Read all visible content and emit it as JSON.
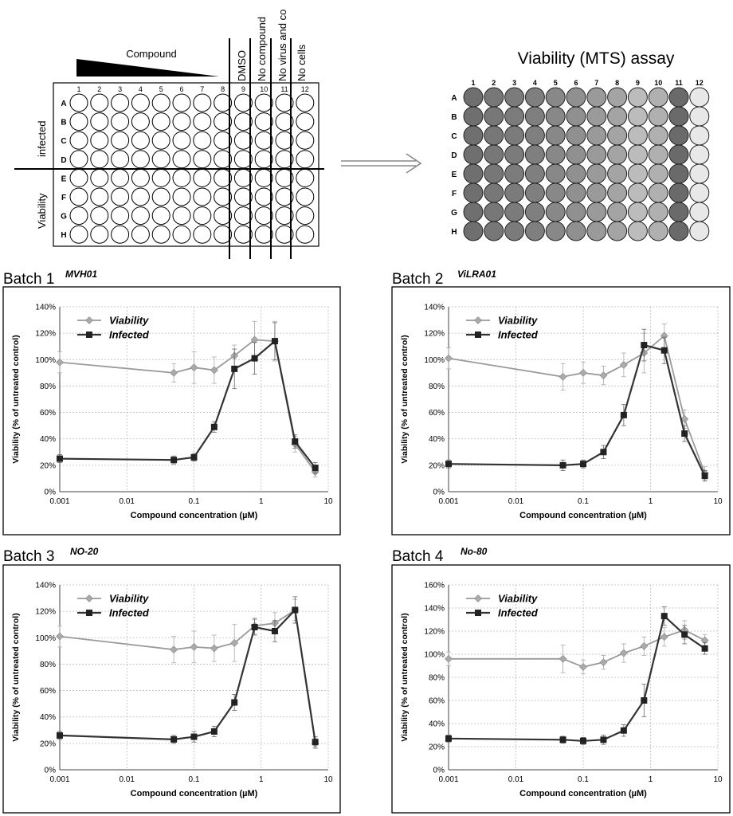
{
  "plate_layout": {
    "compound_label": "Compound",
    "column_numbers": [
      "1",
      "2",
      "3",
      "4",
      "5",
      "6",
      "7",
      "8",
      "9",
      "10",
      "11",
      "12"
    ],
    "row_letters": [
      "A",
      "B",
      "C",
      "D",
      "E",
      "F",
      "G",
      "H"
    ],
    "column_labels": [
      "DMSO",
      "No compound",
      "No virus and co",
      "No cells"
    ],
    "group_labels": [
      "infected",
      "Viability"
    ]
  },
  "assay_plate": {
    "title": "Viability (MTS) assay",
    "column_numbers": [
      "1",
      "2",
      "3",
      "4",
      "5",
      "6",
      "7",
      "8",
      "9",
      "10",
      "11",
      "12"
    ],
    "row_letters": [
      "A",
      "B",
      "C",
      "D",
      "E",
      "F",
      "G",
      "H"
    ]
  },
  "chart_data": [
    {
      "type": "line",
      "title": "Batch 1",
      "subtitle": "MVH01",
      "xlabel": "Compound concentration (µM)",
      "ylabel": "Viability (% of untreated control)",
      "x_scale": "log",
      "xlim": [
        0.001,
        10
      ],
      "ylim": [
        0,
        140
      ],
      "x_ticks": [
        "0.001",
        "0.01",
        "0.1",
        "1",
        "10"
      ],
      "y_ticks": [
        "0%",
        "20%",
        "40%",
        "60%",
        "80%",
        "100%",
        "120%",
        "140%"
      ],
      "legend_position": "top-left",
      "grid": true,
      "series": [
        {
          "name": "Viability",
          "x": [
            0.001,
            0.05,
            0.1,
            0.2,
            0.4,
            0.8,
            1.6,
            3.2,
            6.4
          ],
          "y": [
            98,
            90,
            94,
            92,
            103,
            115,
            114,
            36,
            15
          ],
          "err": [
            8,
            7,
            12,
            10,
            8,
            14,
            15,
            6,
            4
          ]
        },
        {
          "name": "Infected",
          "x": [
            0.001,
            0.05,
            0.1,
            0.2,
            0.4,
            0.8,
            1.6,
            3.2,
            6.4
          ],
          "y": [
            25,
            24,
            26,
            49,
            93,
            101,
            114,
            38,
            18
          ],
          "err": [
            3,
            3,
            3,
            4,
            15,
            12,
            14,
            5,
            4
          ]
        }
      ]
    },
    {
      "type": "line",
      "title": "Batch 2",
      "subtitle": "ViLRA01",
      "xlabel": "Compound concentration (µM)",
      "ylabel": "Viability (% of untreated control)",
      "x_scale": "log",
      "xlim": [
        0.001,
        10
      ],
      "ylim": [
        0,
        140
      ],
      "x_ticks": [
        "0.001",
        "0.01",
        "0.1",
        "1",
        "10"
      ],
      "y_ticks": [
        "0%",
        "20%",
        "40%",
        "60%",
        "80%",
        "100%",
        "120%",
        "140%"
      ],
      "legend_position": "top-left",
      "grid": true,
      "series": [
        {
          "name": "Viability",
          "x": [
            0.001,
            0.05,
            0.1,
            0.2,
            0.4,
            0.8,
            1.6,
            3.2,
            6.4
          ],
          "y": [
            101,
            87,
            90,
            88,
            96,
            105,
            118,
            55,
            14
          ],
          "err": [
            8,
            10,
            8,
            7,
            9,
            15,
            9,
            7,
            5
          ]
        },
        {
          "name": "Infected",
          "x": [
            0.001,
            0.05,
            0.1,
            0.2,
            0.4,
            0.8,
            1.6,
            3.2,
            6.4
          ],
          "y": [
            21,
            20,
            21,
            30,
            58,
            111,
            107,
            44,
            12
          ],
          "err": [
            3,
            4,
            3,
            5,
            8,
            12,
            10,
            6,
            4
          ]
        }
      ]
    },
    {
      "type": "line",
      "title": "Batch 3",
      "subtitle": "NO-20",
      "xlabel": "Compound concentration (µM)",
      "ylabel": "Viability (% of untreated control)",
      "x_scale": "log",
      "xlim": [
        0.001,
        10
      ],
      "ylim": [
        0,
        140
      ],
      "x_ticks": [
        "0.001",
        "0.01",
        "0.1",
        "1",
        "10"
      ],
      "y_ticks": [
        "0%",
        "20%",
        "40%",
        "60%",
        "80%",
        "100%",
        "120%",
        "140%"
      ],
      "legend_position": "top-left",
      "grid": true,
      "series": [
        {
          "name": "Viability",
          "x": [
            0.001,
            0.05,
            0.1,
            0.2,
            0.4,
            0.8,
            1.6,
            3.2,
            6.4
          ],
          "y": [
            101,
            91,
            93,
            92,
            96,
            109,
            111,
            121,
            20
          ],
          "err": [
            8,
            10,
            12,
            10,
            14,
            6,
            8,
            8,
            4
          ]
        },
        {
          "name": "Infected",
          "x": [
            0.001,
            0.05,
            0.1,
            0.2,
            0.4,
            0.8,
            1.6,
            3.2,
            6.4
          ],
          "y": [
            26,
            23,
            25,
            29,
            51,
            108,
            105,
            121,
            21
          ],
          "err": [
            3,
            3,
            4,
            4,
            6,
            6,
            8,
            10,
            4
          ]
        }
      ]
    },
    {
      "type": "line",
      "title": "Batch 4",
      "subtitle": "No-80",
      "xlabel": "Compound concentration (µM)",
      "ylabel": "Viability (% of untreated control)",
      "x_scale": "log",
      "xlim": [
        0.001,
        10
      ],
      "ylim": [
        0,
        160
      ],
      "x_ticks": [
        "0.001",
        "0.01",
        "0.1",
        "1",
        "10"
      ],
      "y_ticks": [
        "0%",
        "20%",
        "40%",
        "60%",
        "80%",
        "100%",
        "120%",
        "140%",
        "160%"
      ],
      "legend_position": "top-left",
      "grid": true,
      "series": [
        {
          "name": "Viability",
          "x": [
            0.001,
            0.05,
            0.1,
            0.2,
            0.4,
            0.8,
            1.6,
            3.2,
            6.4
          ],
          "y": [
            96,
            96,
            89,
            93,
            101,
            107,
            115,
            121,
            112
          ],
          "err": [
            6,
            12,
            6,
            6,
            8,
            8,
            8,
            8,
            5
          ]
        },
        {
          "name": "Infected",
          "x": [
            0.001,
            0.05,
            0.1,
            0.2,
            0.4,
            0.8,
            1.6,
            3.2,
            6.4
          ],
          "y": [
            27,
            26,
            25,
            26,
            34,
            60,
            133,
            117,
            105
          ],
          "err": [
            3,
            3,
            3,
            4,
            5,
            14,
            8,
            8,
            5
          ]
        }
      ]
    }
  ]
}
